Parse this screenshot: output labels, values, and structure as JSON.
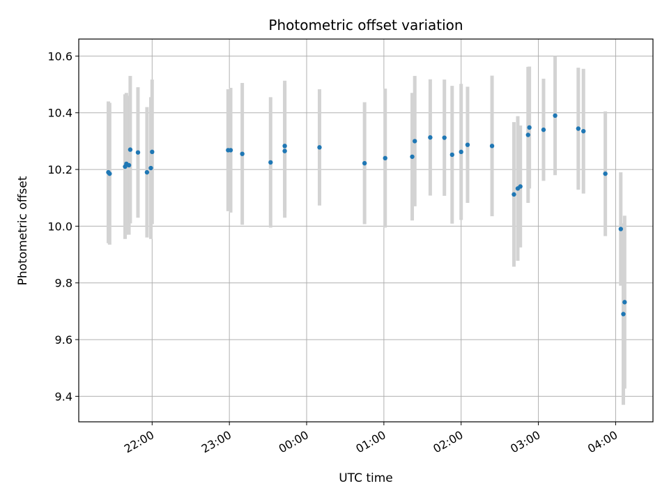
{
  "chart_data": {
    "type": "scatter",
    "title": "Photometric offset variation",
    "xlabel": "UTC time",
    "ylabel": "Photometric offset",
    "grid": true,
    "x_ticks": [
      "22:00",
      "23:00",
      "00:00",
      "01:00",
      "02:00",
      "03:00",
      "04:00"
    ],
    "y_ticks": [
      "9.4",
      "9.6",
      "9.8",
      "10.0",
      "10.2",
      "10.4",
      "10.6"
    ],
    "ylim": [
      9.31,
      10.66
    ],
    "xlim": [
      "21:03",
      "04:29"
    ],
    "marker_color": "#1f77b4",
    "errorbar_color": "#d3d3d3",
    "series": [
      {
        "x": [
          "21:26",
          "21:27",
          "21:39",
          "21:40",
          "21:42",
          "21:43",
          "21:49",
          "21:56",
          "21:59",
          "22:00",
          "22:59",
          "23:01",
          "23:10",
          "23:32",
          "23:43",
          "23:43",
          "24:10",
          "24:45",
          "25:01",
          "25:22",
          "25:24",
          "25:36",
          "25:47",
          "25:53",
          "26:00",
          "26:05",
          "26:24",
          "26:41",
          "26:44",
          "26:46",
          "26:52",
          "26:53",
          "27:04",
          "27:13",
          "27:31",
          "27:35",
          "27:52",
          "28:04",
          "28:06",
          "28:07"
        ],
        "y": [
          10.19,
          10.185,
          10.21,
          10.22,
          10.215,
          10.27,
          10.26,
          10.19,
          10.205,
          10.262,
          10.268,
          10.268,
          10.255,
          10.225,
          10.265,
          10.283,
          10.278,
          10.222,
          10.24,
          10.245,
          10.3,
          10.313,
          10.312,
          10.252,
          10.262,
          10.287,
          10.283,
          10.112,
          10.133,
          10.14,
          10.322,
          10.348,
          10.34,
          10.39,
          10.344,
          10.335,
          10.185,
          9.99,
          9.69,
          9.732
        ],
        "err": [
          0.25,
          0.25,
          0.255,
          0.25,
          0.245,
          0.26,
          0.23,
          0.23,
          0.25,
          0.255,
          0.215,
          0.22,
          0.25,
          0.23,
          0.235,
          0.23,
          0.205,
          0.215,
          0.245,
          0.225,
          0.23,
          0.205,
          0.205,
          0.243,
          0.24,
          0.205,
          0.248,
          0.255,
          0.255,
          0.215,
          0.24,
          0.215,
          0.18,
          0.21,
          0.215,
          0.22,
          0.22,
          0.2,
          0.32,
          0.305
        ]
      }
    ]
  }
}
